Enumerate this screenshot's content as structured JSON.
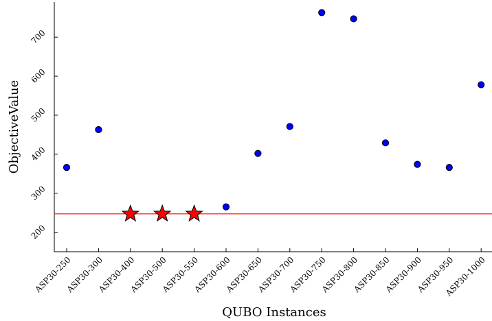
{
  "chart_data": {
    "type": "scatter",
    "xlabel": "QUBO Instances",
    "ylabel": "ObjectiveValue",
    "categories": [
      "ASP30-250",
      "ASP30-300",
      "ASP30-400",
      "ASP30-500",
      "ASP30-550",
      "ASP30-600",
      "ASP30-650",
      "ASP30-700",
      "ASP30-750",
      "ASP30-800",
      "ASP30-850",
      "ASP30-900",
      "ASP30-950",
      "ASP30-1000"
    ],
    "values": [
      366,
      463,
      247,
      247,
      247,
      265,
      402,
      471,
      763,
      747,
      429,
      374,
      366,
      578
    ],
    "markers": [
      "circle",
      "circle",
      "star",
      "star",
      "star",
      "circle",
      "circle",
      "circle",
      "circle",
      "circle",
      "circle",
      "circle",
      "circle",
      "circle"
    ],
    "reference_line": {
      "y": 247,
      "color": "#ff0000"
    },
    "yticks": [
      200,
      300,
      400,
      500,
      600,
      700
    ],
    "ylim": [
      150,
      790
    ],
    "grid": false,
    "colors": {
      "circle": "#0000ff",
      "star": "#ff0000",
      "outline": "#000000"
    }
  }
}
